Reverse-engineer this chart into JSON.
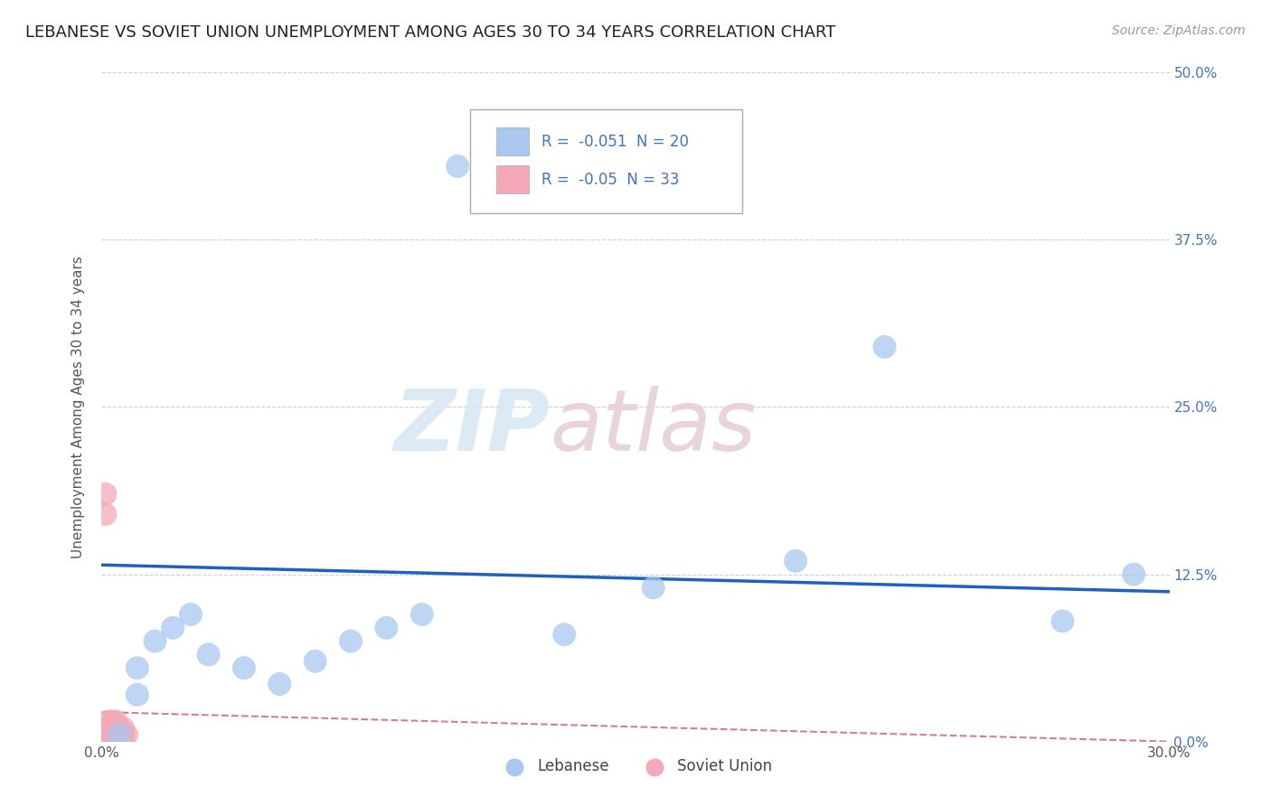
{
  "title": "LEBANESE VS SOVIET UNION UNEMPLOYMENT AMONG AGES 30 TO 34 YEARS CORRELATION CHART",
  "source": "Source: ZipAtlas.com",
  "ylabel": "Unemployment Among Ages 30 to 34 years",
  "xlim": [
    0.0,
    0.3
  ],
  "ylim": [
    0.0,
    0.5
  ],
  "xticks": [
    0.0,
    0.05,
    0.1,
    0.15,
    0.2,
    0.25,
    0.3
  ],
  "xtick_labels": [
    "0.0%",
    "",
    "",
    "",
    "",
    "",
    "30.0%"
  ],
  "ytick_labels": [
    "0.0%",
    "12.5%",
    "25.0%",
    "37.5%",
    "50.0%"
  ],
  "yticks": [
    0.0,
    0.125,
    0.25,
    0.375,
    0.5
  ],
  "lebanese_R": -0.051,
  "lebanese_N": 20,
  "soviet_R": -0.05,
  "soviet_N": 33,
  "lebanese_color": "#a8c8f0",
  "soviet_color": "#f4a8b8",
  "trend_lebanese_color": "#2060c0",
  "trend_soviet_color": "#d08090",
  "lebanese_x": [
    0.005,
    0.01,
    0.01,
    0.015,
    0.02,
    0.025,
    0.03,
    0.04,
    0.05,
    0.06,
    0.07,
    0.08,
    0.09,
    0.1,
    0.13,
    0.155,
    0.195,
    0.22,
    0.27,
    0.29
  ],
  "lebanese_y": [
    0.005,
    0.035,
    0.055,
    0.075,
    0.085,
    0.095,
    0.065,
    0.055,
    0.043,
    0.06,
    0.075,
    0.085,
    0.095,
    0.43,
    0.08,
    0.115,
    0.135,
    0.295,
    0.09,
    0.125
  ],
  "soviet_x": [
    0.001,
    0.001,
    0.001,
    0.001,
    0.001,
    0.001,
    0.001,
    0.001,
    0.001,
    0.001,
    0.002,
    0.002,
    0.002,
    0.002,
    0.002,
    0.002,
    0.002,
    0.003,
    0.003,
    0.003,
    0.003,
    0.003,
    0.004,
    0.004,
    0.004,
    0.004,
    0.005,
    0.005,
    0.005,
    0.006,
    0.006,
    0.006,
    0.007
  ],
  "soviet_y": [
    0.0,
    0.0,
    0.0,
    0.005,
    0.005,
    0.005,
    0.01,
    0.01,
    0.17,
    0.185,
    0.0,
    0.0,
    0.005,
    0.005,
    0.01,
    0.01,
    0.015,
    0.0,
    0.005,
    0.005,
    0.01,
    0.015,
    0.0,
    0.005,
    0.01,
    0.015,
    0.0,
    0.005,
    0.01,
    0.0,
    0.005,
    0.01,
    0.005
  ],
  "leb_trend_x0": 0.0,
  "leb_trend_y0": 0.132,
  "leb_trend_x1": 0.3,
  "leb_trend_y1": 0.112,
  "sov_trend_x0": 0.0,
  "sov_trend_y0": 0.022,
  "sov_trend_x1": 0.3,
  "sov_trend_y1": 0.0,
  "watermark_zip": "ZIP",
  "watermark_atlas": "atlas",
  "background_color": "#ffffff",
  "grid_color": "#d0d0d0",
  "title_fontsize": 13,
  "label_fontsize": 11,
  "tick_fontsize": 11,
  "legend_fontsize": 12
}
